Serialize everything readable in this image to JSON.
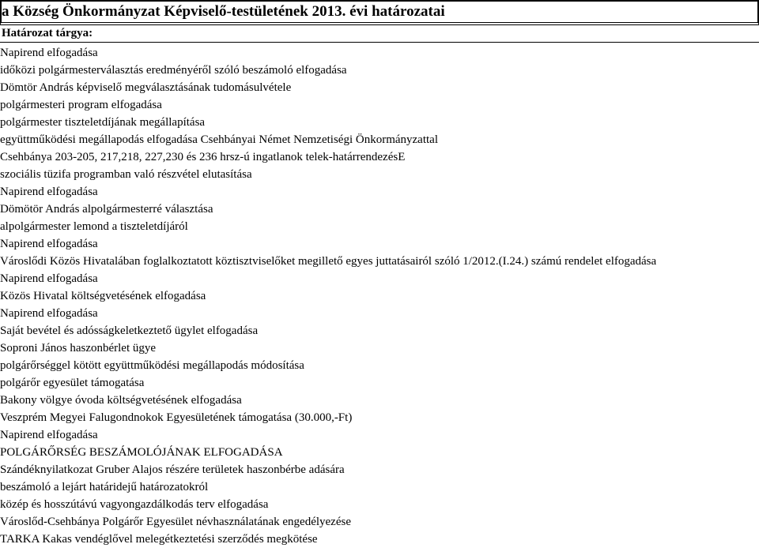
{
  "title": "a Község Önkormányzat Képviselő-testületének 2013. évi határozatai",
  "column_header": "Határozat tárgya:",
  "rows": [
    "Napirend elfogadása",
    "időközi polgármesterválasztás eredményéről szóló beszámoló elfogadása",
    "Dömtör András képviselő megválasztásának tudomásulvétele",
    "polgármesteri program elfogadása",
    "polgármester tiszteletdíjának megállapítása",
    "együttműködési megállapodás elfogadása Csehbányai Német Nemzetiségi Önkormányzattal",
    "Csehbánya 203-205, 217,218, 227,230 és 236 hrsz-ú ingatlanok telek-határrendezésE",
    "szociális tüzifa programban való részvétel elutasítása",
    "Napirend elfogadása",
    "Dömötör András alpolgármesterré választása",
    "alpolgármester lemond a tiszteletdíjáról",
    "Napirend elfogadása",
    "Városlődi Közös Hivatalában foglalkoztatott köztisztviselőket megillető egyes juttatásairól szóló 1/2012.(I.24.) számú rendelet elfogadása",
    "Napirend elfogadása",
    "Közös Hivatal költségvetésének elfogadása",
    "Napirend elfogadása",
    "Saját bevétel és adósságkeletkeztető ügylet elfogadása",
    "Soproni János haszonbérlet ügye",
    "polgárőrséggel kötött együttműködési megállapodás módosítása",
    "polgárőr egyesület támogatása",
    "Bakony völgye óvoda költségvetésének elfogadása",
    "Veszprém Megyei Falugondnokok Egyesületének támogatása (30.000,-Ft)",
    "Napirend elfogadása",
    "POLGÁRŐRSÉG BESZÁMOLÓJÁNAK ELFOGADÁSA",
    "Szándéknyilatkozat Gruber Alajos részére területek haszonbérbe adására",
    "beszámoló a lejárt határidejű határozatokról",
    "közép és hosszútávú vagyongazdálkodás terv elfogadása",
    "Városlőd-Csehbánya Polgárőr Egyesület névhasználatának engedélyezése",
    "TARKA Kakas vendéglővel melegétkeztetési szerződés megkötése"
  ]
}
